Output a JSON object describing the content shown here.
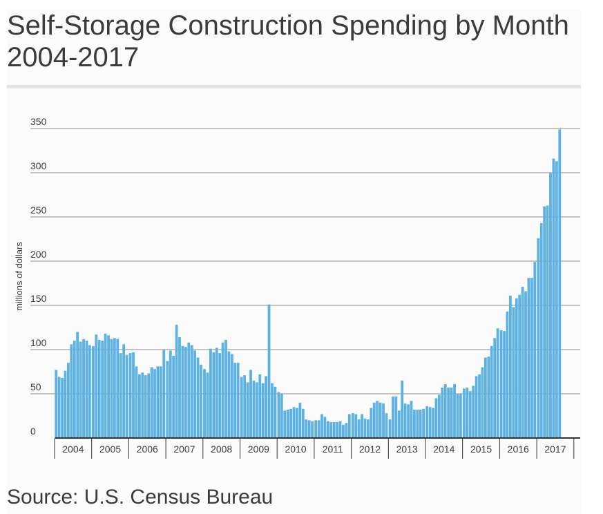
{
  "title": "Self-Storage Construction Spending by Month 2004-2017",
  "source": "Source: U.S. Census Bureau",
  "colors": {
    "bar": "#5eb2e3",
    "grid": "#8c8c8c",
    "axis": "#333333",
    "text": "#3b3b3b"
  },
  "chart_data": {
    "type": "bar",
    "title": "Self-Storage Construction Spending by Month 2004-2017",
    "ylabel": "millions of dollars",
    "xlabel": "",
    "ylim": [
      0,
      350
    ],
    "yticks": [
      0,
      50,
      100,
      150,
      200,
      250,
      300,
      350
    ],
    "grid": true,
    "categories": [
      "2004",
      "2005",
      "2006",
      "2007",
      "2008",
      "2009",
      "2010",
      "2011",
      "2012",
      "2013",
      "2014",
      "2015",
      "2016",
      "2017"
    ],
    "series": [
      {
        "values_by_year": {
          "2004": [
            77,
            69,
            68,
            76,
            85,
            106,
            110,
            120,
            109,
            112,
            110,
            105
          ],
          "2005": [
            104,
            117,
            111,
            110,
            118,
            116,
            112,
            113,
            112,
            96,
            106,
            94
          ],
          "2006": [
            96,
            97,
            81,
            72,
            74,
            71,
            73,
            80,
            78,
            81,
            81,
            100
          ],
          "2007": [
            87,
            99,
            93,
            128,
            114,
            104,
            103,
            108,
            105,
            99,
            91,
            83
          ],
          "2008": [
            78,
            74,
            101,
            97,
            102,
            96,
            108,
            111,
            98,
            95,
            85,
            85
          ],
          "2009": [
            69,
            71,
            63,
            77,
            65,
            63,
            72,
            62,
            70,
            151,
            62,
            58
          ],
          "2010": [
            52,
            50,
            31,
            32,
            33,
            35,
            34,
            40,
            33,
            21,
            20,
            19
          ],
          "2011": [
            20,
            20,
            27,
            24,
            19,
            18,
            18,
            18,
            19,
            15,
            17,
            27
          ],
          "2012": [
            28,
            27,
            21,
            27,
            22,
            21,
            34,
            40,
            42,
            40,
            39,
            28
          ],
          "2013": [
            21,
            47,
            47,
            31,
            65,
            39,
            38,
            42,
            32,
            32,
            32,
            33
          ],
          "2014": [
            36,
            35,
            34,
            45,
            49,
            57,
            61,
            57,
            57,
            61,
            50,
            50
          ],
          "2015": [
            56,
            57,
            53,
            59,
            70,
            72,
            80,
            91,
            92,
            104,
            113,
            124
          ],
          "2016": [
            122,
            121,
            143,
            161,
            148,
            158,
            162,
            171,
            166,
            181,
            181,
            199
          ],
          "2017": [
            226,
            243,
            262,
            263,
            300,
            316,
            313,
            349
          ]
        }
      }
    ]
  }
}
